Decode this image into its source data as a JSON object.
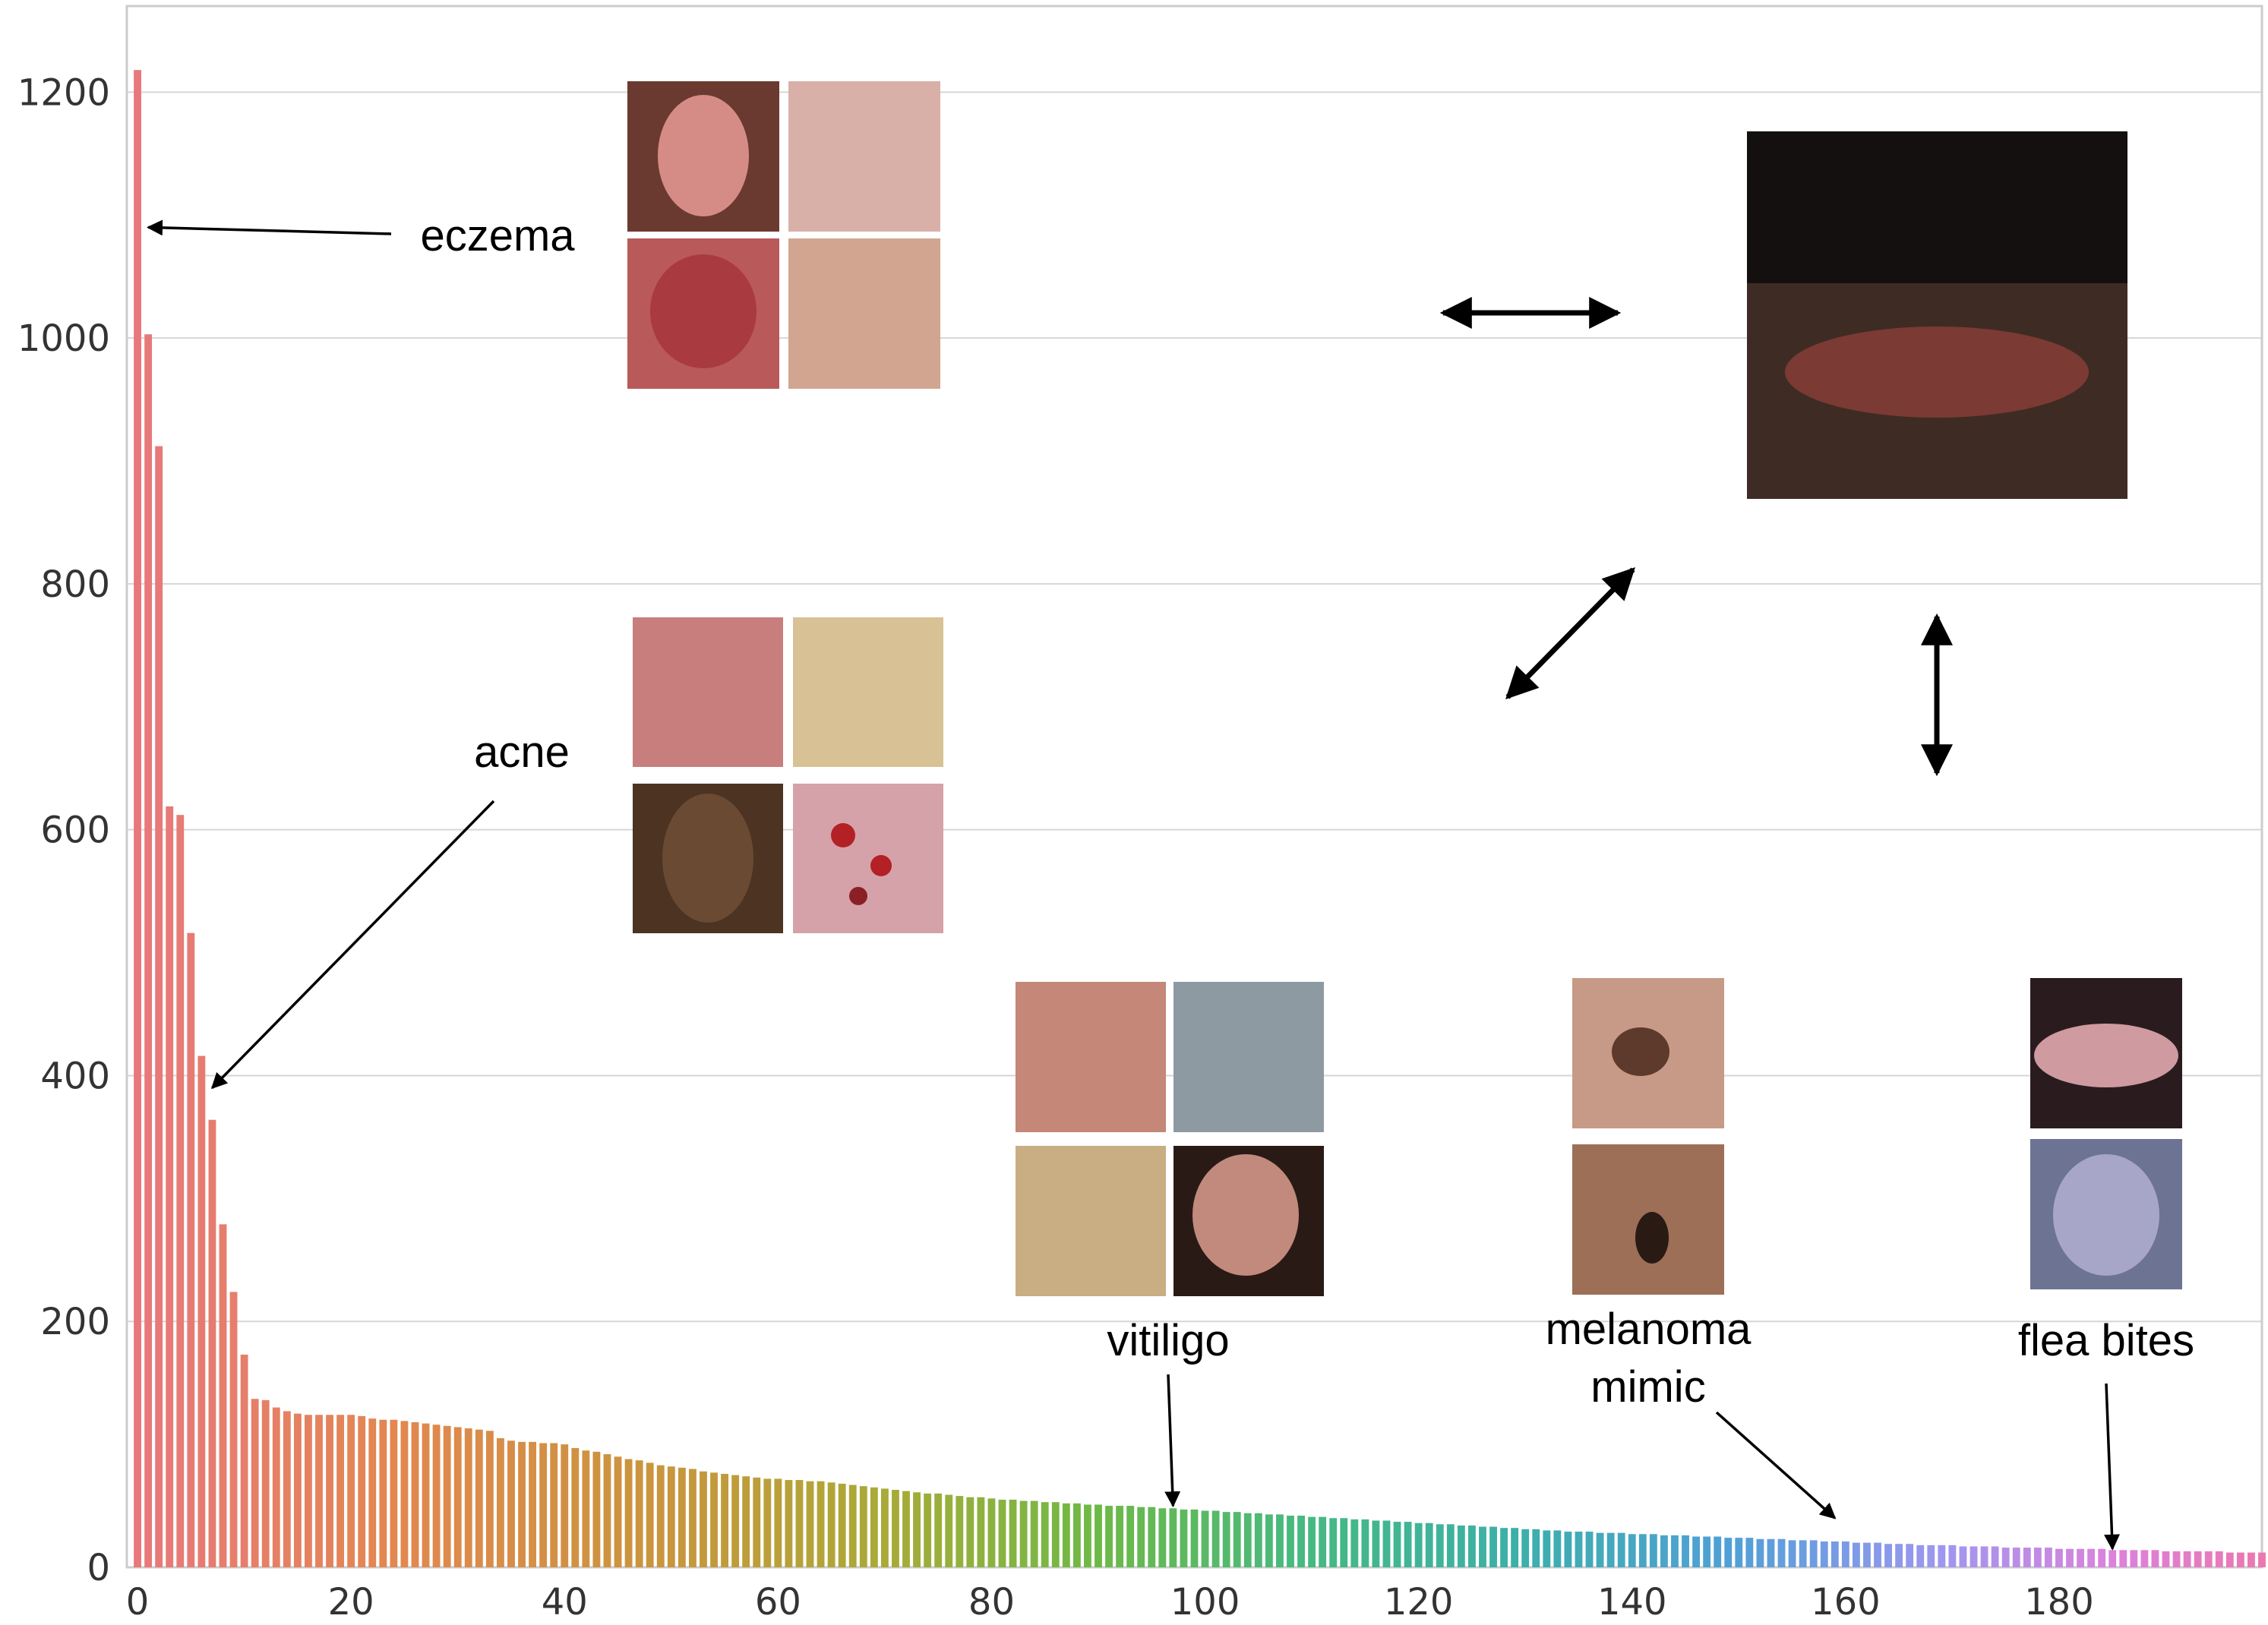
{
  "chart_data": {
    "type": "bar",
    "title": "",
    "xlabel": "",
    "ylabel": "",
    "xlim": [
      -1,
      199
    ],
    "ylim": [
      0,
      1270
    ],
    "grid": true,
    "x_ticks": [
      0,
      20,
      40,
      60,
      80,
      100,
      120,
      140,
      160,
      180
    ],
    "y_ticks": [
      0,
      200,
      400,
      600,
      800,
      1000,
      1200
    ],
    "x_tick_labels": [
      "0",
      "20",
      "40",
      "60",
      "80",
      "100",
      "120",
      "140",
      "160",
      "180"
    ],
    "y_tick_labels": [
      "0",
      "200",
      "400",
      "600",
      "800",
      "1000",
      "1200"
    ],
    "values": [
      1218,
      1003,
      912,
      619,
      612,
      516,
      416,
      364,
      279,
      224,
      173,
      137,
      136,
      130,
      127,
      125,
      124,
      124,
      124,
      124,
      124,
      123,
      121,
      120,
      120,
      119,
      118,
      117,
      116,
      115,
      114,
      113,
      112,
      111,
      105,
      103,
      102,
      102,
      101,
      101,
      100,
      97,
      95,
      94,
      92,
      90,
      88,
      87,
      85,
      83,
      82,
      81,
      80,
      78,
      77,
      76,
      75,
      74,
      73,
      72,
      72,
      71,
      71,
      70,
      70,
      69,
      68,
      67,
      66,
      65,
      64,
      63,
      62,
      61,
      60,
      60,
      59,
      58,
      57,
      57,
      56,
      55,
      55,
      54,
      54,
      53,
      53,
      52,
      52,
      51,
      51,
      50,
      50,
      50,
      49,
      49,
      48,
      48,
      47,
      47,
      46,
      46,
      45,
      45,
      44,
      44,
      43,
      43,
      42,
      42,
      41,
      41,
      40,
      40,
      39,
      39,
      38,
      38,
      37,
      37,
      36,
      36,
      35,
      35,
      34,
      34,
      33,
      33,
      32,
      32,
      31,
      31,
      30,
      30,
      29,
      29,
      29,
      28,
      28,
      28,
      27,
      27,
      27,
      26,
      26,
      26,
      25,
      25,
      25,
      24,
      24,
      24,
      23,
      23,
      23,
      22,
      22,
      22,
      21,
      21,
      21,
      20,
      20,
      20,
      19,
      19,
      19,
      18,
      18,
      18,
      18,
      17,
      17,
      17,
      17,
      16,
      16,
      16,
      16,
      16,
      15,
      15,
      15,
      15,
      15,
      14,
      14,
      14,
      14,
      14,
      13,
      13,
      13,
      13,
      13,
      13,
      12,
      12,
      12,
      12
    ],
    "annotations": [
      {
        "name": "eczema",
        "lines": [
          "eczema"
        ],
        "target": [
          1,
          1090
        ]
      },
      {
        "name": "acne",
        "lines": [
          "acne"
        ],
        "target": [
          7,
          390
        ]
      },
      {
        "name": "vitiligo",
        "lines": [
          "vitiligo"
        ],
        "target": [
          97,
          50
        ]
      },
      {
        "name": "melanoma-mimic",
        "lines": [
          "melanoma",
          "mimic"
        ],
        "target": [
          159,
          40
        ]
      },
      {
        "name": "flea-bites",
        "lines": [
          "flea bites"
        ],
        "target": [
          185,
          15
        ]
      }
    ]
  }
}
